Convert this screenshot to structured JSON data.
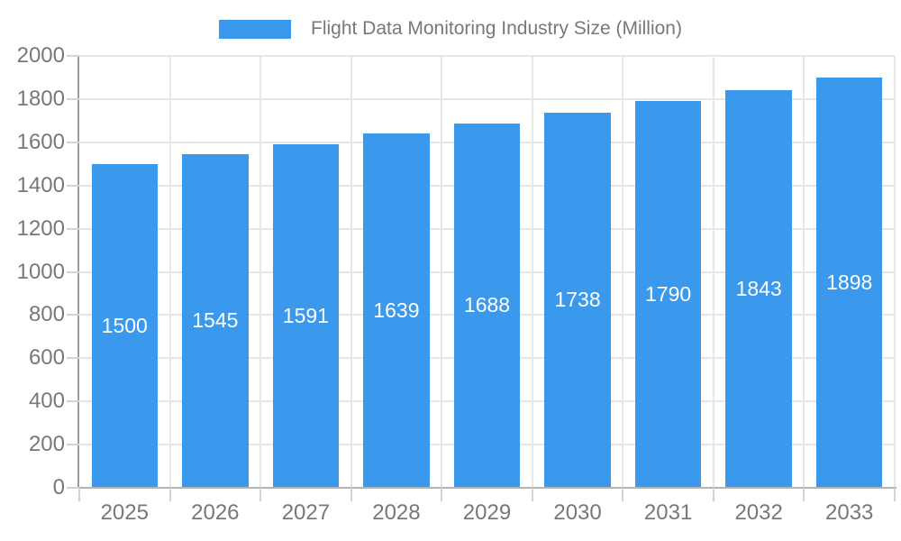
{
  "legend": {
    "label": "Flight Data Monitoring Industry Size (Million)"
  },
  "colors": {
    "bar": "#3A99EC",
    "axis_text": "#787878",
    "grid": "#E6E6E6",
    "y_axis_line": "#999999",
    "x_axis_line": "#B3B3B3",
    "tick": "#D3D3D3",
    "value_label": "#FFFFFF"
  },
  "chart_data": {
    "type": "bar",
    "title": "Flight Data Monitoring Industry Size (Million)",
    "series_name": "Flight Data Monitoring Industry Size (Million)",
    "categories": [
      "2025",
      "2026",
      "2027",
      "2028",
      "2029",
      "2030",
      "2031",
      "2032",
      "2033"
    ],
    "values": [
      1500,
      1545,
      1591,
      1639,
      1688,
      1738,
      1790,
      1843,
      1898
    ],
    "xlabel": "",
    "ylabel": "",
    "ylim": [
      0,
      2000
    ],
    "ytick_step": 200,
    "grid": true,
    "legend_position": "top",
    "value_labels": "inside-center",
    "bar_width_fraction": 0.73
  }
}
